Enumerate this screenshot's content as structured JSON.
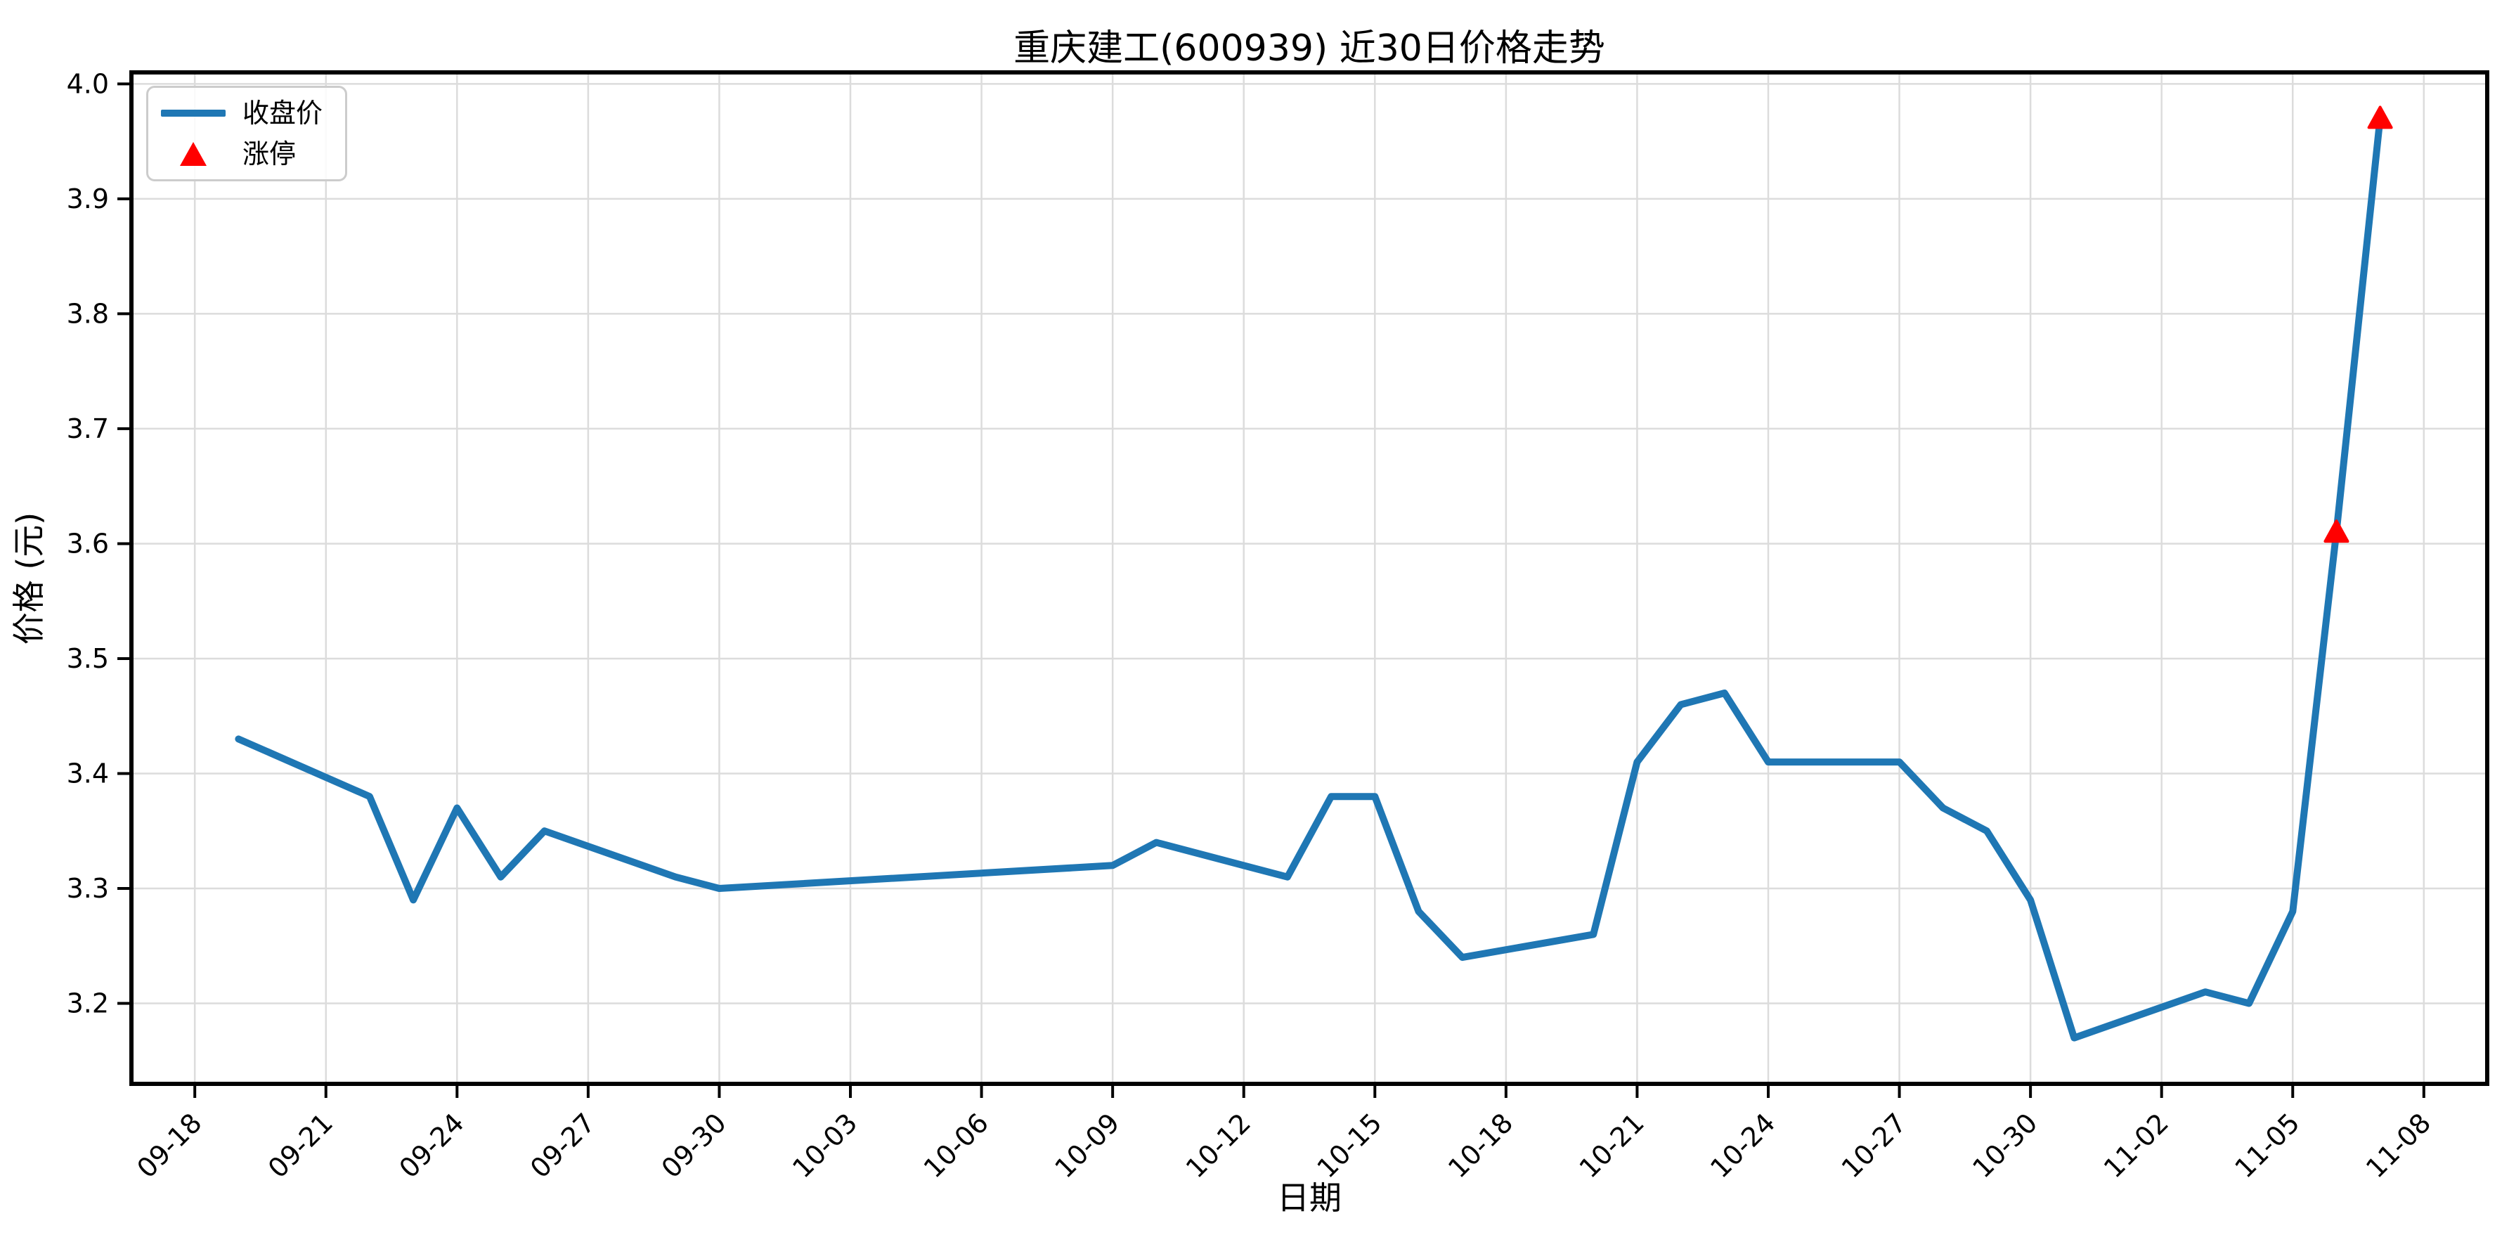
{
  "chart_data": {
    "type": "line",
    "title": "重庆建工(600939) 近30日价格走势",
    "xlabel": "日期",
    "ylabel": "价格 (元)",
    "grid": true,
    "legend_position": "upper left",
    "legend": [
      {
        "label": "收盘价",
        "marker": "line",
        "color": "#1f77b4"
      },
      {
        "label": "涨停",
        "marker": "triangle-up",
        "color": "#ff0000"
      }
    ],
    "x_tick_labels": [
      "09-18",
      "09-21",
      "09-24",
      "09-27",
      "09-30",
      "10-03",
      "10-06",
      "10-09",
      "10-12",
      "10-15",
      "10-18",
      "10-21",
      "10-24",
      "10-27",
      "10-30",
      "11-02",
      "11-05",
      "11-08"
    ],
    "y_tick_values": [
      3.2,
      3.3,
      3.4,
      3.5,
      3.6,
      3.7,
      3.8,
      3.9,
      4.0
    ],
    "ylim": [
      3.13,
      4.01
    ],
    "xlim_dates": [
      "09-18",
      "11-08"
    ],
    "series": [
      {
        "name": "收盘价",
        "color": "#1f77b4",
        "points": [
          {
            "date": "09-19",
            "close": 3.43
          },
          {
            "date": "09-22",
            "close": 3.38
          },
          {
            "date": "09-23",
            "close": 3.29
          },
          {
            "date": "09-24",
            "close": 3.37
          },
          {
            "date": "09-25",
            "close": 3.31
          },
          {
            "date": "09-26",
            "close": 3.35
          },
          {
            "date": "09-29",
            "close": 3.31
          },
          {
            "date": "09-30",
            "close": 3.3
          },
          {
            "date": "10-09",
            "close": 3.32
          },
          {
            "date": "10-10",
            "close": 3.34
          },
          {
            "date": "10-13",
            "close": 3.31
          },
          {
            "date": "10-14",
            "close": 3.38
          },
          {
            "date": "10-15",
            "close": 3.38
          },
          {
            "date": "10-16",
            "close": 3.28
          },
          {
            "date": "10-17",
            "close": 3.24
          },
          {
            "date": "10-20",
            "close": 3.26
          },
          {
            "date": "10-21",
            "close": 3.41
          },
          {
            "date": "10-22",
            "close": 3.46
          },
          {
            "date": "10-23",
            "close": 3.47
          },
          {
            "date": "10-24",
            "close": 3.41
          },
          {
            "date": "10-27",
            "close": 3.41
          },
          {
            "date": "10-28",
            "close": 3.37
          },
          {
            "date": "10-29",
            "close": 3.35
          },
          {
            "date": "10-30",
            "close": 3.29
          },
          {
            "date": "10-31",
            "close": 3.17
          },
          {
            "date": "11-03",
            "close": 3.21
          },
          {
            "date": "11-04",
            "close": 3.2
          },
          {
            "date": "11-05",
            "close": 3.28
          },
          {
            "date": "11-06",
            "close": 3.61
          },
          {
            "date": "11-07",
            "close": 3.97
          }
        ]
      }
    ],
    "limit_up_dates": [
      "11-06",
      "11-07"
    ]
  },
  "colors": {
    "line": "#1f77b4",
    "limit_up_marker": "#ff0000",
    "grid": "#dcdcdc",
    "axis": "#000000",
    "background": "#ffffff"
  }
}
